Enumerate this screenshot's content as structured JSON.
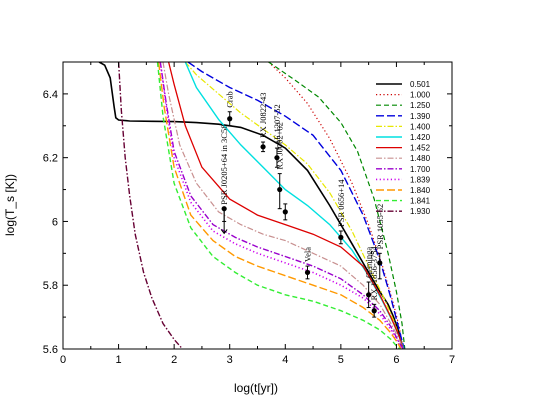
{
  "chart_data": {
    "type": "line",
    "title": "",
    "xlabel": "log(t[yr])",
    "ylabel": "log(T_s [K])",
    "xlim": [
      0,
      7
    ],
    "ylim": [
      5.6,
      6.5
    ],
    "xticks": [
      "0",
      "1",
      "2",
      "3",
      "4",
      "5",
      "6",
      "7"
    ],
    "yticks": [
      "5.6",
      "5.8",
      "6",
      "6.2",
      "6.4"
    ],
    "legend_position": "right",
    "series": [
      {
        "name": "0.501",
        "color": "#000000",
        "dash": "solid",
        "width": 1.6,
        "x": [
          0.65,
          0.75,
          0.85,
          0.92,
          0.95,
          1.0,
          1.2,
          1.6,
          2.0,
          2.4,
          2.8,
          3.2,
          3.6,
          4.0,
          4.4,
          4.8,
          5.2,
          5.5,
          5.7,
          5.85,
          5.95,
          6.05,
          6.12
        ],
        "y": [
          6.5,
          6.49,
          6.45,
          6.36,
          6.325,
          6.318,
          6.315,
          6.314,
          6.313,
          6.31,
          6.305,
          6.295,
          6.27,
          6.23,
          6.16,
          6.05,
          5.93,
          5.84,
          5.78,
          5.74,
          5.7,
          5.65,
          5.6
        ]
      },
      {
        "name": "1.000",
        "color": "#cc0000",
        "dash": "dot",
        "width": 1.2,
        "x": [
          3.7,
          4.0,
          4.4,
          4.8,
          5.2,
          5.5,
          5.75,
          5.95,
          6.05,
          6.12
        ],
        "y": [
          6.5,
          6.45,
          6.37,
          6.26,
          6.12,
          5.99,
          5.86,
          5.74,
          5.67,
          5.6
        ]
      },
      {
        "name": "1.250",
        "color": "#008800",
        "dash": "dash",
        "width": 1.2,
        "x": [
          3.7,
          4.2,
          4.6,
          5.0,
          5.3,
          5.6,
          5.85,
          6.0,
          6.1,
          6.15
        ],
        "y": [
          6.5,
          6.44,
          6.39,
          6.31,
          6.22,
          6.07,
          5.9,
          5.78,
          5.68,
          5.6
        ]
      },
      {
        "name": "1.390",
        "color": "#0000dd",
        "dash": "longdash",
        "width": 1.4,
        "x": [
          2.25,
          2.5,
          3.0,
          3.5,
          4.0,
          4.5,
          5.0,
          5.4,
          5.7,
          5.9,
          6.05,
          6.14
        ],
        "y": [
          6.5,
          6.47,
          6.42,
          6.38,
          6.33,
          6.27,
          6.16,
          6.02,
          5.88,
          5.76,
          5.66,
          5.6
        ]
      },
      {
        "name": "1.400",
        "color": "#e8e800",
        "dash": "dashdot",
        "width": 1.2,
        "x": [
          2.2,
          2.4,
          2.8,
          3.2,
          3.6,
          4.0,
          4.4,
          4.8,
          5.2,
          5.5,
          5.75,
          5.95,
          6.07,
          6.13
        ],
        "y": [
          6.5,
          6.46,
          6.4,
          6.34,
          6.29,
          6.24,
          6.18,
          6.09,
          5.97,
          5.86,
          5.77,
          5.69,
          5.63,
          5.6
        ]
      },
      {
        "name": "1.420",
        "color": "#00e0e0",
        "dash": "solid",
        "width": 1.4,
        "x": [
          2.2,
          2.4,
          2.8,
          3.2,
          3.6,
          4.0,
          4.4,
          4.8,
          5.2,
          5.5,
          5.75,
          5.95,
          6.07,
          6.13
        ],
        "y": [
          6.5,
          6.42,
          6.32,
          6.24,
          6.17,
          6.1,
          6.05,
          5.99,
          5.91,
          5.83,
          5.75,
          5.68,
          5.63,
          5.6
        ]
      },
      {
        "name": "1.452",
        "color": "#dd0000",
        "dash": "solid",
        "width": 1.3,
        "x": [
          1.9,
          2.0,
          2.2,
          2.5,
          3.0,
          3.5,
          4.0,
          4.5,
          5.0,
          5.4,
          5.7,
          5.9,
          6.05,
          6.12
        ],
        "y": [
          6.5,
          6.43,
          6.3,
          6.17,
          6.07,
          6.02,
          5.99,
          5.96,
          5.92,
          5.86,
          5.77,
          5.7,
          5.64,
          5.6
        ]
      },
      {
        "name": "1.480",
        "color": "#c89090",
        "dash": "dashdot",
        "width": 1.2,
        "x": [
          1.8,
          1.9,
          2.1,
          2.4,
          2.8,
          3.2,
          3.6,
          4.0,
          4.5,
          5.0,
          5.4,
          5.7,
          5.9,
          6.05,
          6.12
        ],
        "y": [
          6.5,
          6.4,
          6.24,
          6.12,
          6.03,
          5.99,
          5.96,
          5.94,
          5.9,
          5.86,
          5.8,
          5.74,
          5.68,
          5.63,
          5.6
        ]
      },
      {
        "name": "1.700",
        "color": "#9900cc",
        "dash": "dashdot",
        "width": 1.4,
        "x": [
          1.75,
          1.85,
          2.0,
          2.3,
          2.7,
          3.1,
          3.5,
          4.0,
          4.5,
          5.0,
          5.4,
          5.7,
          5.9,
          6.05,
          6.12
        ],
        "y": [
          6.5,
          6.38,
          6.22,
          6.08,
          5.99,
          5.95,
          5.92,
          5.89,
          5.86,
          5.82,
          5.77,
          5.72,
          5.67,
          5.62,
          5.6
        ]
      },
      {
        "name": "1.839",
        "color": "#cc00ee",
        "dash": "dot",
        "width": 1.6,
        "x": [
          1.75,
          1.85,
          2.0,
          2.3,
          2.7,
          3.1,
          3.5,
          4.0,
          4.5,
          5.0,
          5.4,
          5.7,
          5.9,
          6.03,
          6.1
        ],
        "y": [
          6.5,
          6.37,
          6.2,
          6.06,
          5.97,
          5.93,
          5.9,
          5.87,
          5.84,
          5.8,
          5.76,
          5.71,
          5.66,
          5.62,
          5.6
        ]
      },
      {
        "name": "1.840",
        "color": "#ff9900",
        "dash": "longdash",
        "width": 1.4,
        "x": [
          1.72,
          1.82,
          2.0,
          2.3,
          2.7,
          3.1,
          3.5,
          4.0,
          4.5,
          5.0,
          5.4,
          5.7,
          5.9,
          6.02,
          6.08
        ],
        "y": [
          6.5,
          6.36,
          6.17,
          6.02,
          5.94,
          5.89,
          5.86,
          5.83,
          5.8,
          5.77,
          5.73,
          5.69,
          5.65,
          5.62,
          5.6
        ]
      },
      {
        "name": "1.841",
        "color": "#33ee33",
        "dash": "dash",
        "width": 1.4,
        "x": [
          1.7,
          1.8,
          2.0,
          2.3,
          2.7,
          3.1,
          3.5,
          4.0,
          4.5,
          5.0,
          5.4,
          5.7,
          5.9,
          6.0,
          6.06
        ],
        "y": [
          6.5,
          6.33,
          6.12,
          5.98,
          5.89,
          5.84,
          5.8,
          5.77,
          5.75,
          5.72,
          5.69,
          5.66,
          5.63,
          5.61,
          5.6
        ]
      },
      {
        "name": "1.930",
        "color": "#660033",
        "dash": "dashdot",
        "width": 1.4,
        "x": [
          1.0,
          1.05,
          1.12,
          1.2,
          1.3,
          1.45,
          1.6,
          1.8,
          2.0,
          2.15
        ],
        "y": [
          6.5,
          6.35,
          6.2,
          6.08,
          5.96,
          5.84,
          5.76,
          5.68,
          5.63,
          5.6
        ]
      }
    ],
    "observations": [
      {
        "label": "Crab",
        "x": 3.0,
        "y": 6.322,
        "err_low": 0.022,
        "err_high": 0.022,
        "upper_limit": false
      },
      {
        "label": "RX J0822-43",
        "x": 3.6,
        "y": 6.234,
        "err_low": 0.015,
        "err_high": 0.015,
        "upper_limit": false
      },
      {
        "label": "1E 1207-52",
        "x": 3.85,
        "y": 6.2,
        "err_low": 0.03,
        "err_high": 0.03,
        "upper_limit": false
      },
      {
        "label": "RX J0002+62",
        "x": 3.9,
        "y": 6.1,
        "err_low": 0.06,
        "err_high": 0.05,
        "upper_limit": false
      },
      {
        "label": "PSR J0205+64 in 3C58",
        "x": 2.9,
        "y": 6.04,
        "err_low": 0.04,
        "err_high": 0.0,
        "upper_limit": true
      },
      {
        "label": "",
        "x": 4.0,
        "y": 6.03,
        "err_low": 0.025,
        "err_high": 0.025,
        "upper_limit": false
      },
      {
        "label": "PSR 0656+14",
        "x": 5.0,
        "y": 5.95,
        "err_low": 0.02,
        "err_high": 0.02,
        "upper_limit": false
      },
      {
        "label": "Vela",
        "x": 4.4,
        "y": 5.84,
        "err_low": 0.02,
        "err_high": 0.02,
        "upper_limit": false
      },
      {
        "label": "Geminga",
        "x": 5.5,
        "y": 5.77,
        "err_low": 0.04,
        "err_high": 0.04,
        "upper_limit": false
      },
      {
        "label": "RX J1856-3754",
        "x": 5.6,
        "y": 5.72,
        "err_low": 0.02,
        "err_high": 0.02,
        "upper_limit": false
      },
      {
        "label": "PSR 1055-52",
        "x": 5.7,
        "y": 5.87,
        "err_low": 0.05,
        "err_high": 0.03,
        "upper_limit": false
      }
    ]
  }
}
